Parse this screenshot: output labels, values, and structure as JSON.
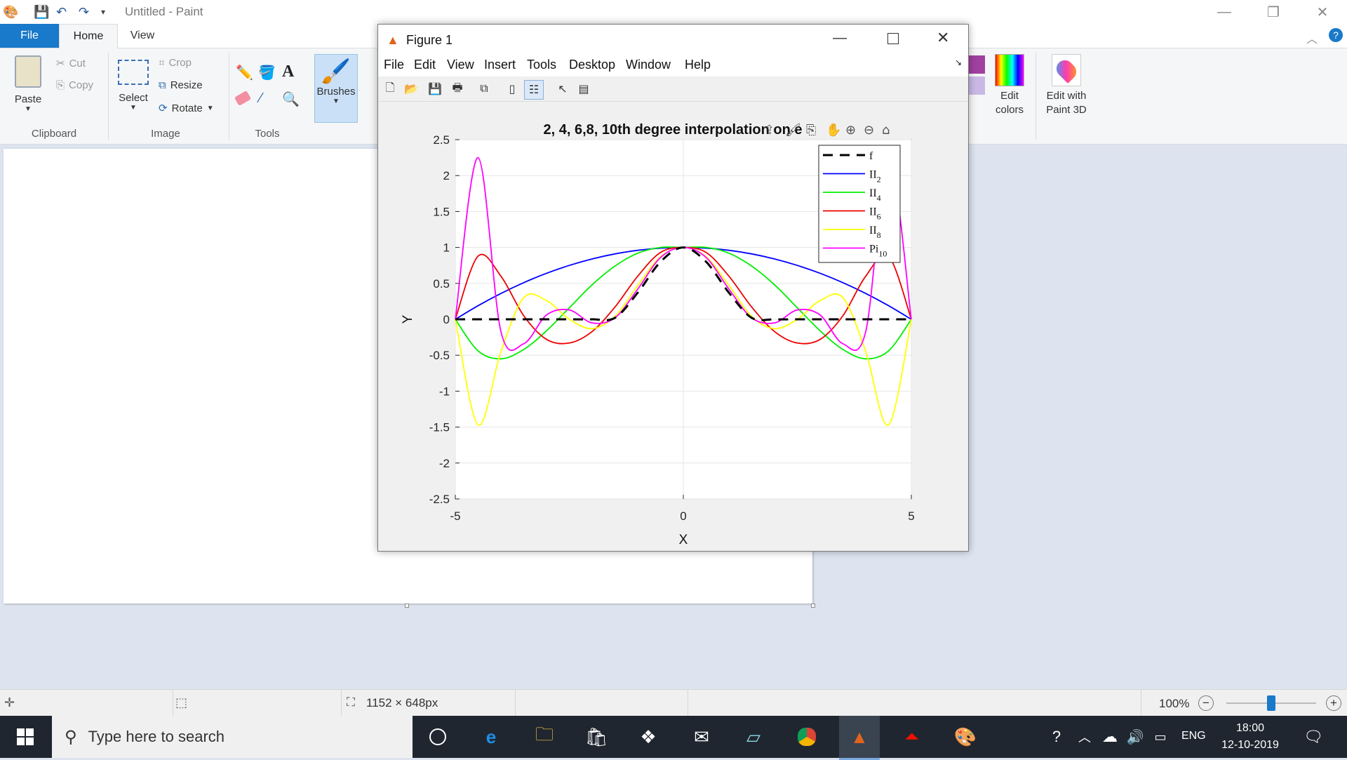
{
  "paint": {
    "title": "Untitled - Paint",
    "tabs": [
      "File",
      "Home",
      "View"
    ],
    "clipboard": {
      "paste": "Paste",
      "cut": "Cut",
      "copy": "Copy",
      "label": "Clipboard"
    },
    "image": {
      "select": "Select",
      "crop": "Crop",
      "resize": "Resize",
      "rotate": "Rotate",
      "label": "Image"
    },
    "tools": {
      "label": "Tools",
      "brushes": "Brushes"
    },
    "colors": {
      "edit_colors": "Edit colors",
      "edit_paint3d": "Edit with Paint 3D",
      "swatch1": "#a040a0",
      "swatch2": "#c9b8e6"
    },
    "status": {
      "size": "1152 × 648px",
      "zoom": "100%",
      "zoom_level": 0.5
    }
  },
  "figure": {
    "title": "Figure 1",
    "menu": [
      "File",
      "Edit",
      "View",
      "Insert",
      "Tools",
      "Desktop",
      "Window",
      "Help"
    ]
  },
  "taskbar": {
    "search_placeholder": "Type here to search",
    "lang": "ENG",
    "time": "18:00",
    "date": "12-10-2019"
  },
  "chart_data": {
    "type": "line",
    "title": "2, 4, 6,8, 10th degree interpolation on e",
    "xlabel": "X",
    "ylabel": "Y",
    "xlim": [
      -5,
      5
    ],
    "ylim": [
      -2.5,
      2.5
    ],
    "xticks": [
      "-5",
      "0",
      "5"
    ],
    "yticks": [
      "2.5",
      "2",
      "1.5",
      "1",
      "0.5",
      "0",
      "-0.5",
      "-1",
      "-1.5",
      "-2",
      "-2.5"
    ],
    "grid": true,
    "legend_position": "top-right",
    "x": [
      -5,
      -4.5,
      -4,
      -3.5,
      -3,
      -2.5,
      -2,
      -1.5,
      -1,
      -0.5,
      0,
      0.5,
      1,
      1.5,
      2,
      2.5,
      3,
      3.5,
      4,
      4.5,
      5
    ],
    "series": [
      {
        "name": "f",
        "color": "#000000",
        "dashed": true,
        "values": [
          0,
          0,
          0,
          0,
          0,
          0,
          0,
          0.02,
          0.37,
          0.8,
          1,
          0.8,
          0.37,
          0.02,
          0,
          0,
          0,
          0,
          0,
          0,
          0
        ]
      },
      {
        "name": "II2",
        "label": "II",
        "sub": "2",
        "color": "#0000ff",
        "values": [
          0,
          0.19,
          0.36,
          0.51,
          0.64,
          0.75,
          0.84,
          0.91,
          0.96,
          0.99,
          1,
          0.99,
          0.96,
          0.91,
          0.84,
          0.75,
          0.64,
          0.51,
          0.36,
          0.19,
          0
        ]
      },
      {
        "name": "II4",
        "label": "II",
        "sub": "4",
        "color": "#00ee00",
        "values": [
          0,
          -0.44,
          -0.55,
          -0.42,
          -0.16,
          0.16,
          0.48,
          0.74,
          0.92,
          1.0,
          1,
          1.0,
          0.92,
          0.74,
          0.48,
          0.16,
          -0.16,
          -0.42,
          -0.55,
          -0.44,
          0
        ]
      },
      {
        "name": "II6",
        "label": "II",
        "sub": "6",
        "color": "#ee0000",
        "values": [
          0,
          0.88,
          0.6,
          0.05,
          -0.28,
          -0.33,
          -0.17,
          0.17,
          0.6,
          0.93,
          1,
          0.93,
          0.6,
          0.17,
          -0.17,
          -0.33,
          -0.28,
          0.05,
          0.6,
          0.88,
          0
        ]
      },
      {
        "name": "II8",
        "label": "II",
        "sub": "8",
        "color": "#ffff00",
        "values": [
          0,
          -1.47,
          -0.45,
          0.3,
          0.26,
          0.0,
          -0.13,
          0.04,
          0.47,
          0.87,
          1,
          0.87,
          0.47,
          0.04,
          -0.13,
          0.0,
          0.26,
          0.3,
          -0.45,
          -1.47,
          0
        ]
      },
      {
        "name": "Pi10",
        "label": "Pi",
        "sub": "10",
        "color": "#ff00ff",
        "values": [
          0,
          2.25,
          -0.17,
          -0.34,
          0.06,
          0.13,
          -0.05,
          0.02,
          0.42,
          0.86,
          1,
          0.86,
          0.42,
          0.02,
          -0.05,
          0.13,
          0.06,
          -0.34,
          -0.17,
          2.25,
          0
        ]
      }
    ]
  }
}
